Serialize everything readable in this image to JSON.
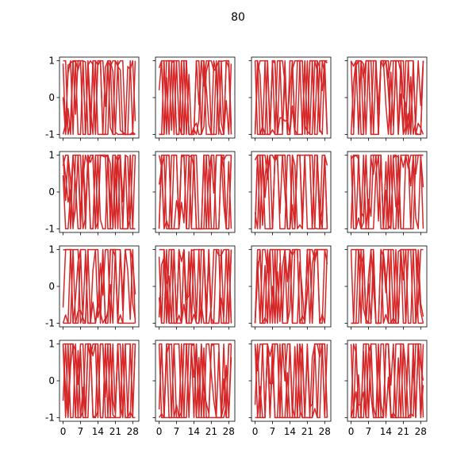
{
  "figure": {
    "title": "80"
  },
  "chart_data": {
    "type": "line",
    "title": "80",
    "layout": "4x4 grid",
    "color": "#d62728",
    "shared_x": true,
    "shared_y": true,
    "xlim": [
      -1.45,
      30.45
    ],
    "ylim": [
      -1.1,
      1.1
    ],
    "xticks": [
      0,
      7,
      14,
      21,
      28
    ],
    "yticks": [
      -1,
      0,
      1
    ],
    "xtick_labels": [
      "0",
      "7",
      "14",
      "21",
      "28"
    ],
    "ytick_labels": [
      "-1",
      "0",
      "1"
    ],
    "traces_per_panel": 4,
    "points_per_trace": 30,
    "value_range": [
      -1,
      1
    ],
    "note_values": "each panel shows 4 noisy traces of 30 points saturating between -1 and 1"
  }
}
